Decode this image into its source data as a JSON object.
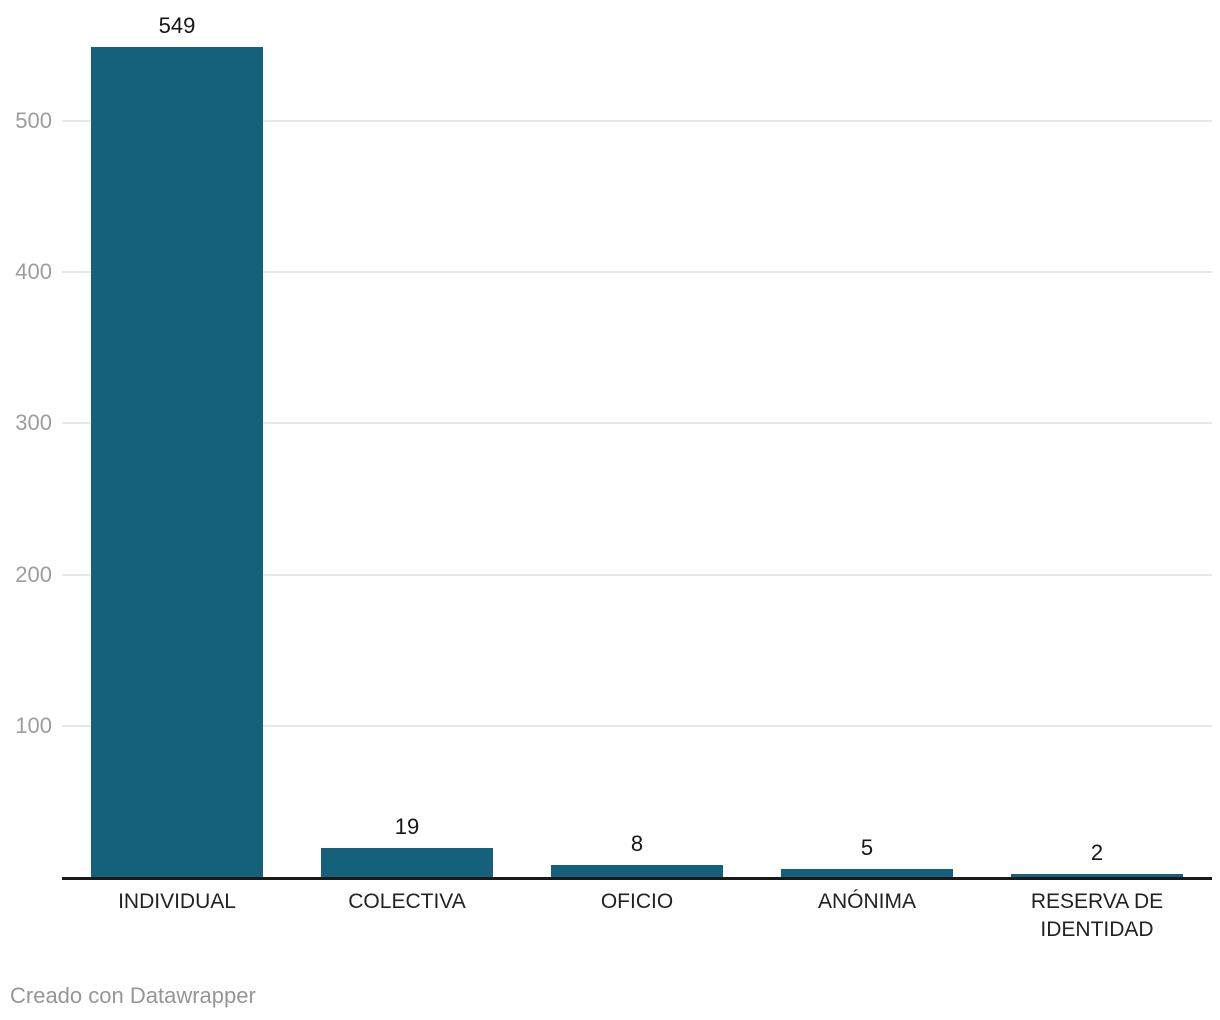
{
  "chart_data": {
    "type": "bar",
    "categories": [
      "INDIVIDUAL",
      "COLECTIVA",
      "OFICIO",
      "ANÓNIMA",
      "RESERVA DE IDENTIDAD"
    ],
    "values": [
      549,
      19,
      8,
      5,
      2
    ],
    "value_labels": [
      "549",
      "19",
      "8",
      "5",
      "2"
    ],
    "title": "",
    "xlabel": "",
    "ylabel": "",
    "ylim": [
      0,
      549
    ],
    "yticks": [
      100,
      200,
      300,
      400,
      500
    ],
    "grid": true,
    "legend": "none",
    "bar_color": "#15607a"
  },
  "footer": {
    "text": "Creado con Datawrapper"
  },
  "colors": {
    "bar": "#15607a",
    "gridline": "#e7e7e7",
    "axis_line": "#1a1a1a",
    "tick_label": "#9d9d9d",
    "value_label": "#161616",
    "category_label": "#222222",
    "footer_text": "#969696",
    "background": "#ffffff"
  }
}
